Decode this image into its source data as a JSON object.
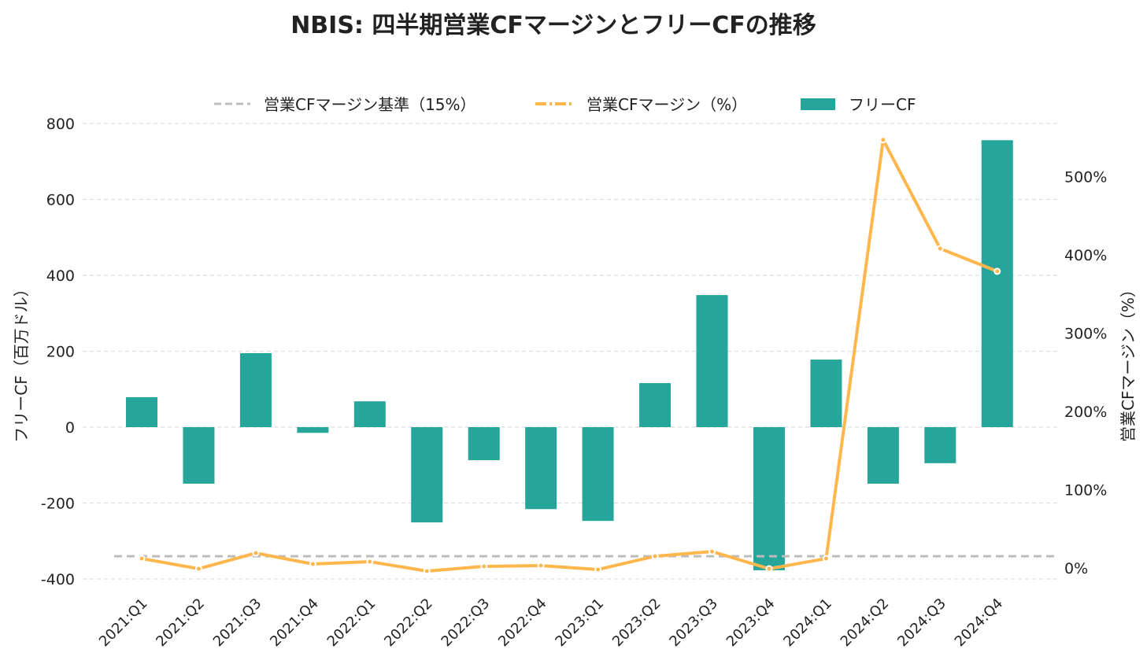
{
  "chart_data": {
    "type": "bar+line",
    "title": "NBIS: 四半期営業CFマージンとフリーCFの推移",
    "categories": [
      "2021:Q1",
      "2021:Q2",
      "2021:Q3",
      "2021:Q4",
      "2022:Q1",
      "2022:Q2",
      "2022:Q3",
      "2022:Q4",
      "2023:Q1",
      "2023:Q2",
      "2023:Q3",
      "2023:Q4",
      "2024:Q1",
      "2024:Q2",
      "2024:Q3",
      "2024:Q4"
    ],
    "ylabel_left": "フリーCF（百万ドル）",
    "ylabel_right": "営業CFマージン（%）",
    "ylim_left": [
      -400,
      800
    ],
    "yticks_left": [
      "800",
      "600",
      "400",
      "200",
      "0",
      "-200",
      "-400"
    ],
    "ylim_right_zero_tick": 0,
    "yticks_right": [
      "500%",
      "400%",
      "300%",
      "200%",
      "100%",
      "0%"
    ],
    "legend": [
      "営業CFマージン基準（15%）",
      "営業CFマージン（%）",
      "フリーCF"
    ],
    "legend_position": "top-center",
    "grid": "horizontal dashed",
    "series": [
      {
        "name": "フリーCF",
        "type": "bar",
        "axis": "left",
        "color": "#26a69a",
        "values": [
          79,
          -149,
          195,
          -15,
          68,
          -251,
          -87,
          -216,
          -247,
          116,
          348,
          -377,
          178,
          -149,
          -95,
          756
        ]
      },
      {
        "name": "営業CFマージン（%）",
        "type": "line",
        "axis": "right",
        "color": "#ffb74d",
        "values": [
          12,
          -1,
          19,
          5,
          8,
          -4,
          2,
          3,
          -2,
          15,
          21,
          -1,
          12,
          547,
          408,
          379
        ]
      },
      {
        "name": "営業CFマージン基準（15%）",
        "type": "hline",
        "axis": "right",
        "color": "#bdbdbd",
        "value": 15
      }
    ]
  }
}
